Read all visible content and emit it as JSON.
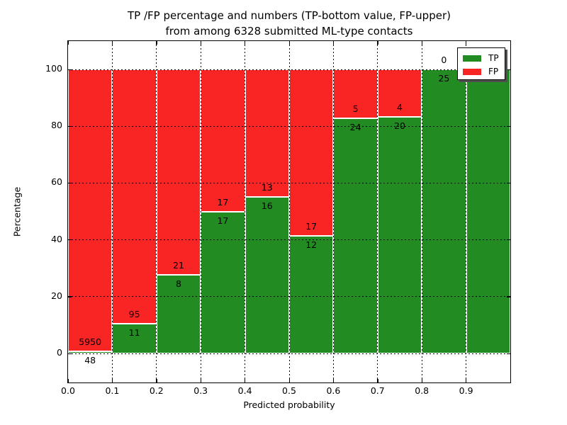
{
  "title": {
    "line1": "TP /FP percentage and numbers (TP-bottom value, FP-upper)",
    "line2": "from among 6328 submitted ML-type contacts"
  },
  "axes": {
    "xlabel": "Predicted probability",
    "ylabel": "Percentage",
    "x_tick_labels": [
      "0.0",
      "0.1",
      "0.2",
      "0.3",
      "0.4",
      "0.5",
      "0.6",
      "0.7",
      "0.8",
      "0.9"
    ],
    "y_tick_labels": [
      "0",
      "20",
      "40",
      "60",
      "80",
      "100"
    ],
    "y_tick_values": [
      0,
      20,
      40,
      60,
      80,
      100
    ]
  },
  "legend": {
    "position": "upper right",
    "entries": [
      {
        "label": "TP",
        "color": "#228b22"
      },
      {
        "label": "FP",
        "color": "#f92424"
      }
    ]
  },
  "chart_data": {
    "type": "bar",
    "stacked": true,
    "normalized": "each bar scaled to 100%",
    "title": "TP /FP percentage and numbers (TP-bottom value, FP-upper) from among 6328 submitted ML-type contacts",
    "xlabel": "Predicted probability",
    "ylabel": "Percentage",
    "bins": [
      "0.0-0.1",
      "0.1-0.2",
      "0.2-0.3",
      "0.3-0.4",
      "0.4-0.5",
      "0.5-0.6",
      "0.6-0.7",
      "0.7-0.8",
      "0.8-0.9",
      "0.9-1.0"
    ],
    "series": [
      {
        "name": "TP",
        "color": "#228b22",
        "counts": [
          48,
          11,
          8,
          17,
          16,
          12,
          24,
          20,
          25,
          25
        ]
      },
      {
        "name": "FP",
        "color": "#f92424",
        "counts": [
          5950,
          95,
          21,
          17,
          13,
          17,
          5,
          4,
          0,
          0
        ]
      }
    ],
    "total_contacts": 6328,
    "xlim": [
      0.0,
      1.0
    ],
    "ylim": [
      -10,
      110
    ],
    "grid": "dotted black, at x ticks 0.1-0.9 and y ticks 0/20/40/60/80/100",
    "bar_edge_color": "#ffffff",
    "label_convention": "TP count below stack boundary, FP count above stack boundary"
  }
}
